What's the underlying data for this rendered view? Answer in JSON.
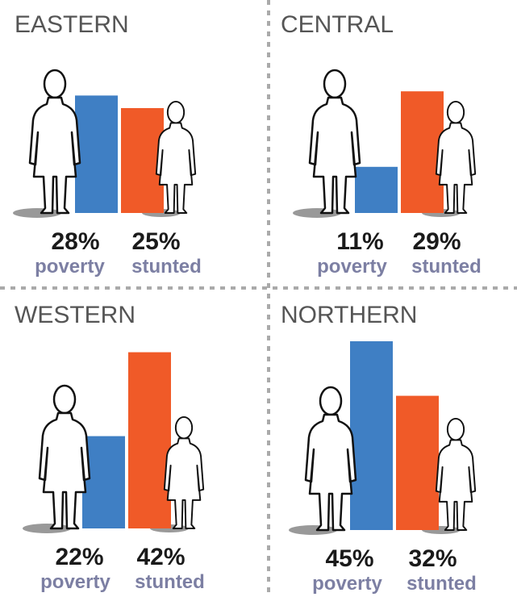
{
  "chart_data": [
    {
      "type": "bar",
      "title": "EASTERN",
      "categories": [
        "poverty",
        "stunted"
      ],
      "values": [
        28,
        25
      ],
      "value_labels": [
        "28%",
        "25%"
      ],
      "colors": [
        "#3f7fc4",
        "#f05a28"
      ]
    },
    {
      "type": "bar",
      "title": "CENTRAL",
      "categories": [
        "poverty",
        "stunted"
      ],
      "values": [
        11,
        29
      ],
      "value_labels": [
        "11%",
        "29%"
      ],
      "colors": [
        "#3f7fc4",
        "#f05a28"
      ]
    },
    {
      "type": "bar",
      "title": "WESTERN",
      "categories": [
        "poverty",
        "stunted"
      ],
      "values": [
        22,
        42
      ],
      "value_labels": [
        "22%",
        "42%"
      ],
      "colors": [
        "#3f7fc4",
        "#f05a28"
      ]
    },
    {
      "type": "bar",
      "title": "NORTHERN",
      "categories": [
        "poverty",
        "stunted"
      ],
      "values": [
        45,
        32
      ],
      "value_labels": [
        "45%",
        "32%"
      ],
      "colors": [
        "#3f7fc4",
        "#f05a28"
      ]
    }
  ]
}
